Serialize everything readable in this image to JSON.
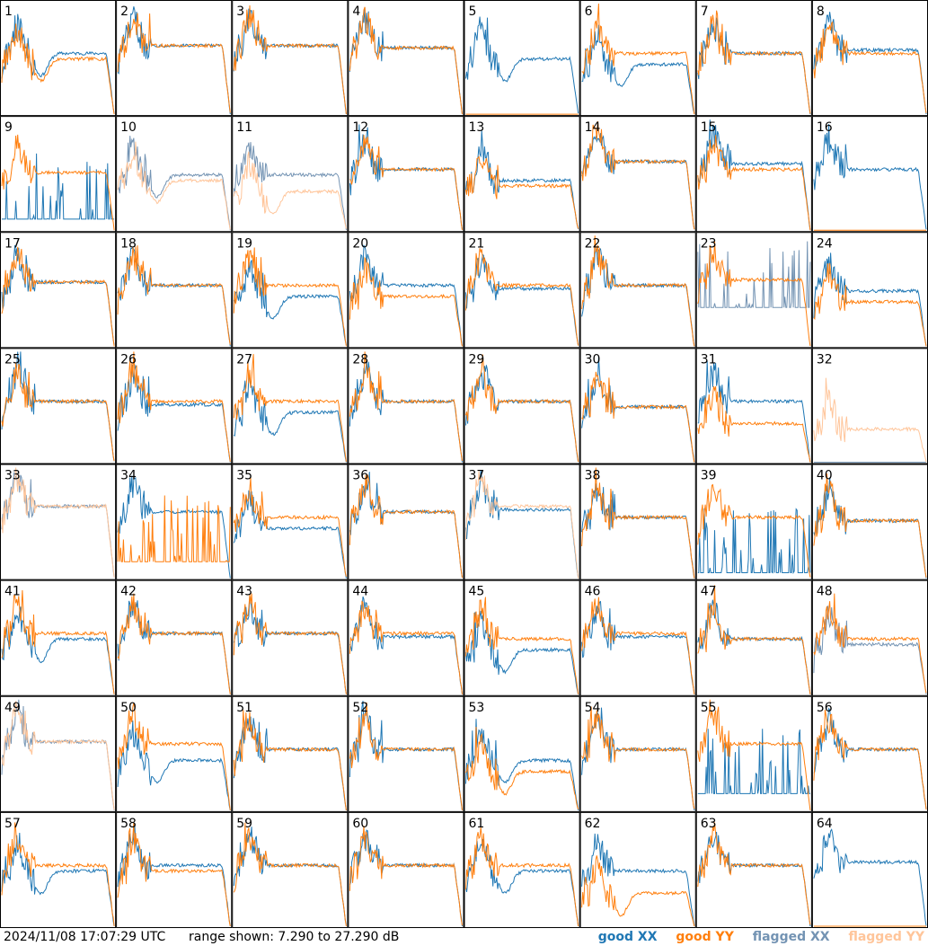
{
  "chart_data": {
    "type": "line",
    "grid": true,
    "rows": 8,
    "cols": 8,
    "ylim_db": [
      7.29,
      27.29
    ],
    "timestamp": "2024/11/08 17:07:29 UTC",
    "range_text": "range shown: 7.290 to 27.290 dB",
    "series": [
      {
        "name": "good XX",
        "color": "#1f77b4"
      },
      {
        "name": "good YY",
        "color": "#ff7f0e"
      },
      {
        "name": "flagged XX",
        "color": "#7393b3"
      },
      {
        "name": "flagged YY",
        "color": "#ffc59a"
      }
    ],
    "panels": [
      {
        "id": "1",
        "xx": {
          "shape": "dip",
          "level": 0.55,
          "flagged": false
        },
        "yy": {
          "shape": "dip",
          "level": 0.5,
          "flagged": false
        }
      },
      {
        "id": "2",
        "xx": {
          "shape": "flat",
          "level": 0.62,
          "flagged": false
        },
        "yy": {
          "shape": "flat",
          "level": 0.62,
          "flagged": false
        }
      },
      {
        "id": "3",
        "xx": {
          "shape": "flat",
          "level": 0.62,
          "flagged": false
        },
        "yy": {
          "shape": "flat",
          "level": 0.62,
          "flagged": false
        }
      },
      {
        "id": "4",
        "xx": {
          "shape": "flat",
          "level": 0.6,
          "flagged": false
        },
        "yy": {
          "shape": "flat",
          "level": 0.6,
          "flagged": false
        }
      },
      {
        "id": "5",
        "xx": {
          "shape": "dip",
          "level": 0.5,
          "flagged": false
        },
        "yy": {
          "shape": "dead",
          "level": 0.0,
          "flagged": false
        }
      },
      {
        "id": "6",
        "xx": {
          "shape": "dip",
          "level": 0.45,
          "flagged": false
        },
        "yy": {
          "shape": "flat",
          "level": 0.55,
          "flagged": false
        }
      },
      {
        "id": "7",
        "xx": {
          "shape": "flat",
          "level": 0.55,
          "flagged": false
        },
        "yy": {
          "shape": "flat",
          "level": 0.55,
          "flagged": false
        }
      },
      {
        "id": "8",
        "xx": {
          "shape": "flat",
          "level": 0.58,
          "flagged": false
        },
        "yy": {
          "shape": "flat",
          "level": 0.55,
          "flagged": false
        }
      },
      {
        "id": "9",
        "xx": {
          "shape": "spiky",
          "level": 0.1,
          "flagged": false
        },
        "yy": {
          "shape": "flat",
          "level": 0.52,
          "flagged": false
        }
      },
      {
        "id": "10",
        "xx": {
          "shape": "dip",
          "level": 0.5,
          "flagged": true
        },
        "yy": {
          "shape": "dip",
          "level": 0.45,
          "flagged": true
        }
      },
      {
        "id": "11",
        "xx": {
          "shape": "flat",
          "level": 0.5,
          "flagged": true
        },
        "yy": {
          "shape": "dip",
          "level": 0.35,
          "flagged": true
        }
      },
      {
        "id": "12",
        "xx": {
          "shape": "flat",
          "level": 0.55,
          "flagged": false
        },
        "yy": {
          "shape": "flat",
          "level": 0.55,
          "flagged": false
        }
      },
      {
        "id": "13",
        "xx": {
          "shape": "flat",
          "level": 0.45,
          "flagged": false
        },
        "yy": {
          "shape": "flat",
          "level": 0.4,
          "flagged": false
        }
      },
      {
        "id": "14",
        "xx": {
          "shape": "flat",
          "level": 0.62,
          "flagged": false
        },
        "yy": {
          "shape": "flat",
          "level": 0.62,
          "flagged": false
        }
      },
      {
        "id": "15",
        "xx": {
          "shape": "flat",
          "level": 0.6,
          "flagged": false
        },
        "yy": {
          "shape": "flat",
          "level": 0.55,
          "flagged": false
        }
      },
      {
        "id": "16",
        "xx": {
          "shape": "flat",
          "level": 0.55,
          "flagged": false
        },
        "yy": {
          "shape": "dead",
          "level": 0.0,
          "flagged": false
        }
      },
      {
        "id": "17",
        "xx": {
          "shape": "flat",
          "level": 0.58,
          "flagged": false
        },
        "yy": {
          "shape": "flat",
          "level": 0.58,
          "flagged": false
        }
      },
      {
        "id": "18",
        "xx": {
          "shape": "flat",
          "level": 0.55,
          "flagged": false
        },
        "yy": {
          "shape": "flat",
          "level": 0.55,
          "flagged": false
        }
      },
      {
        "id": "19",
        "xx": {
          "shape": "dip",
          "level": 0.45,
          "flagged": false
        },
        "yy": {
          "shape": "flat",
          "level": 0.55,
          "flagged": false
        }
      },
      {
        "id": "20",
        "xx": {
          "shape": "flat",
          "level": 0.55,
          "flagged": false
        },
        "yy": {
          "shape": "flat",
          "level": 0.45,
          "flagged": false
        }
      },
      {
        "id": "21",
        "xx": {
          "shape": "flat",
          "level": 0.52,
          "flagged": false
        },
        "yy": {
          "shape": "flat",
          "level": 0.55,
          "flagged": false
        }
      },
      {
        "id": "22",
        "xx": {
          "shape": "flat",
          "level": 0.55,
          "flagged": false
        },
        "yy": {
          "shape": "flat",
          "level": 0.55,
          "flagged": false
        }
      },
      {
        "id": "23",
        "xx": {
          "shape": "spiky",
          "level": 0.35,
          "flagged": true
        },
        "yy": {
          "shape": "flat",
          "level": 0.6,
          "flagged": false
        }
      },
      {
        "id": "24",
        "xx": {
          "shape": "flat",
          "level": 0.5,
          "flagged": false
        },
        "yy": {
          "shape": "flat",
          "level": 0.4,
          "flagged": false
        }
      },
      {
        "id": "25",
        "xx": {
          "shape": "flat",
          "level": 0.55,
          "flagged": false
        },
        "yy": {
          "shape": "flat",
          "level": 0.55,
          "flagged": false
        }
      },
      {
        "id": "26",
        "xx": {
          "shape": "flat",
          "level": 0.52,
          "flagged": false
        },
        "yy": {
          "shape": "flat",
          "level": 0.55,
          "flagged": false
        }
      },
      {
        "id": "27",
        "xx": {
          "shape": "dip",
          "level": 0.45,
          "flagged": false
        },
        "yy": {
          "shape": "flat",
          "level": 0.55,
          "flagged": false
        }
      },
      {
        "id": "28",
        "xx": {
          "shape": "flat",
          "level": 0.55,
          "flagged": false
        },
        "yy": {
          "shape": "flat",
          "level": 0.55,
          "flagged": false
        }
      },
      {
        "id": "29",
        "xx": {
          "shape": "flat",
          "level": 0.55,
          "flagged": false
        },
        "yy": {
          "shape": "flat",
          "level": 0.55,
          "flagged": false
        }
      },
      {
        "id": "30",
        "xx": {
          "shape": "flat",
          "level": 0.5,
          "flagged": false
        },
        "yy": {
          "shape": "flat",
          "level": 0.5,
          "flagged": false
        }
      },
      {
        "id": "31",
        "xx": {
          "shape": "flat",
          "level": 0.55,
          "flagged": false
        },
        "yy": {
          "shape": "flat",
          "level": 0.35,
          "flagged": false
        }
      },
      {
        "id": "32",
        "xx": {
          "shape": "dead",
          "level": 0.0,
          "flagged": true
        },
        "yy": {
          "shape": "flat",
          "level": 0.3,
          "flagged": true
        }
      },
      {
        "id": "33",
        "xx": {
          "shape": "flat",
          "level": 0.65,
          "flagged": true
        },
        "yy": {
          "shape": "flat",
          "level": 0.65,
          "flagged": true
        }
      },
      {
        "id": "34",
        "xx": {
          "shape": "flat",
          "level": 0.6,
          "flagged": false
        },
        "yy": {
          "shape": "spiky",
          "level": 0.15,
          "flagged": false
        }
      },
      {
        "id": "35",
        "xx": {
          "shape": "flat",
          "level": 0.45,
          "flagged": false
        },
        "yy": {
          "shape": "flat",
          "level": 0.55,
          "flagged": false
        }
      },
      {
        "id": "36",
        "xx": {
          "shape": "flat",
          "level": 0.6,
          "flagged": false
        },
        "yy": {
          "shape": "flat",
          "level": 0.6,
          "flagged": false
        }
      },
      {
        "id": "37",
        "xx": {
          "shape": "flat",
          "level": 0.62,
          "flagged": false
        },
        "yy": {
          "shape": "flat",
          "level": 0.65,
          "flagged": true
        }
      },
      {
        "id": "38",
        "xx": {
          "shape": "flat",
          "level": 0.55,
          "flagged": false
        },
        "yy": {
          "shape": "flat",
          "level": 0.55,
          "flagged": false
        }
      },
      {
        "id": "39",
        "xx": {
          "shape": "spiky",
          "level": 0.05,
          "flagged": false
        },
        "yy": {
          "shape": "flat",
          "level": 0.55,
          "flagged": false
        }
      },
      {
        "id": "40",
        "xx": {
          "shape": "flat",
          "level": 0.52,
          "flagged": false
        },
        "yy": {
          "shape": "flat",
          "level": 0.52,
          "flagged": false
        }
      },
      {
        "id": "41",
        "xx": {
          "shape": "dip",
          "level": 0.5,
          "flagged": false
        },
        "yy": {
          "shape": "flat",
          "level": 0.55,
          "flagged": false
        }
      },
      {
        "id": "42",
        "xx": {
          "shape": "flat",
          "level": 0.55,
          "flagged": false
        },
        "yy": {
          "shape": "flat",
          "level": 0.55,
          "flagged": false
        }
      },
      {
        "id": "43",
        "xx": {
          "shape": "flat",
          "level": 0.55,
          "flagged": false
        },
        "yy": {
          "shape": "flat",
          "level": 0.55,
          "flagged": false
        }
      },
      {
        "id": "44",
        "xx": {
          "shape": "flat",
          "level": 0.52,
          "flagged": false
        },
        "yy": {
          "shape": "flat",
          "level": 0.55,
          "flagged": false
        }
      },
      {
        "id": "45",
        "xx": {
          "shape": "dip",
          "level": 0.4,
          "flagged": false
        },
        "yy": {
          "shape": "flat",
          "level": 0.5,
          "flagged": false
        }
      },
      {
        "id": "46",
        "xx": {
          "shape": "flat",
          "level": 0.52,
          "flagged": false
        },
        "yy": {
          "shape": "flat",
          "level": 0.55,
          "flagged": false
        }
      },
      {
        "id": "47",
        "xx": {
          "shape": "flat",
          "level": 0.5,
          "flagged": false
        },
        "yy": {
          "shape": "flat",
          "level": 0.5,
          "flagged": false
        }
      },
      {
        "id": "48",
        "xx": {
          "shape": "flat",
          "level": 0.45,
          "flagged": true
        },
        "yy": {
          "shape": "flat",
          "level": 0.5,
          "flagged": false
        }
      },
      {
        "id": "49",
        "xx": {
          "shape": "flat",
          "level": 0.62,
          "flagged": true
        },
        "yy": {
          "shape": "flat",
          "level": 0.62,
          "flagged": true
        }
      },
      {
        "id": "50",
        "xx": {
          "shape": "dip",
          "level": 0.45,
          "flagged": false
        },
        "yy": {
          "shape": "flat",
          "level": 0.6,
          "flagged": false
        }
      },
      {
        "id": "51",
        "xx": {
          "shape": "flat",
          "level": 0.55,
          "flagged": false
        },
        "yy": {
          "shape": "flat",
          "level": 0.55,
          "flagged": false
        }
      },
      {
        "id": "52",
        "xx": {
          "shape": "flat",
          "level": 0.55,
          "flagged": false
        },
        "yy": {
          "shape": "flat",
          "level": 0.55,
          "flagged": false
        }
      },
      {
        "id": "53",
        "xx": {
          "shape": "dip",
          "level": 0.45,
          "flagged": false
        },
        "yy": {
          "shape": "dip",
          "level": 0.35,
          "flagged": false
        }
      },
      {
        "id": "54",
        "xx": {
          "shape": "flat",
          "level": 0.55,
          "flagged": false
        },
        "yy": {
          "shape": "flat",
          "level": 0.55,
          "flagged": false
        }
      },
      {
        "id": "55",
        "xx": {
          "shape": "spiky",
          "level": 0.15,
          "flagged": false
        },
        "yy": {
          "shape": "flat",
          "level": 0.6,
          "flagged": false
        }
      },
      {
        "id": "56",
        "xx": {
          "shape": "flat",
          "level": 0.55,
          "flagged": false
        },
        "yy": {
          "shape": "flat",
          "level": 0.55,
          "flagged": false
        }
      },
      {
        "id": "57",
        "xx": {
          "shape": "dip",
          "level": 0.5,
          "flagged": false
        },
        "yy": {
          "shape": "flat",
          "level": 0.55,
          "flagged": false
        }
      },
      {
        "id": "58",
        "xx": {
          "shape": "flat",
          "level": 0.55,
          "flagged": false
        },
        "yy": {
          "shape": "flat",
          "level": 0.5,
          "flagged": false
        }
      },
      {
        "id": "59",
        "xx": {
          "shape": "flat",
          "level": 0.55,
          "flagged": false
        },
        "yy": {
          "shape": "flat",
          "level": 0.55,
          "flagged": false
        }
      },
      {
        "id": "60",
        "xx": {
          "shape": "flat",
          "level": 0.55,
          "flagged": false
        },
        "yy": {
          "shape": "flat",
          "level": 0.55,
          "flagged": false
        }
      },
      {
        "id": "61",
        "xx": {
          "shape": "dip",
          "level": 0.5,
          "flagged": false
        },
        "yy": {
          "shape": "flat",
          "level": 0.55,
          "flagged": false
        }
      },
      {
        "id": "62",
        "xx": {
          "shape": "flat",
          "level": 0.5,
          "flagged": false
        },
        "yy": {
          "shape": "dip",
          "level": 0.3,
          "flagged": false
        }
      },
      {
        "id": "63",
        "xx": {
          "shape": "flat",
          "level": 0.55,
          "flagged": false
        },
        "yy": {
          "shape": "flat",
          "level": 0.55,
          "flagged": false
        }
      },
      {
        "id": "64",
        "xx": {
          "shape": "flat",
          "level": 0.58,
          "flagged": false
        },
        "yy": {
          "shape": "dead",
          "level": 0.0,
          "flagged": false
        }
      }
    ]
  }
}
